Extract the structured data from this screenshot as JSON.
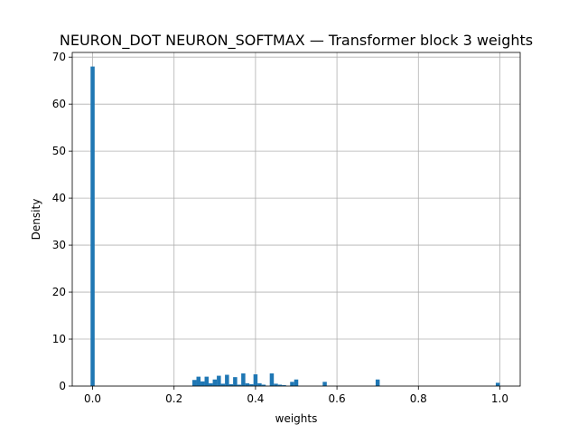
{
  "chart_data": {
    "type": "bar",
    "title": "NEURON_DOT NEURON_SOFTMAX — Transformer block 3 weights",
    "xlabel": "weights",
    "ylabel": "Density",
    "xlim": [
      -0.05,
      1.05
    ],
    "ylim": [
      0,
      71
    ],
    "xticks": [
      "0.0",
      "0.2",
      "0.4",
      "0.6",
      "0.8",
      "1.0"
    ],
    "yticks": [
      "0",
      "10",
      "20",
      "30",
      "40",
      "50",
      "60",
      "70"
    ],
    "grid": true,
    "bar_color": "#1f77b4",
    "bin_width": 0.01,
    "bins": [
      {
        "x": 0.0,
        "density": 68.0
      },
      {
        "x": 0.25,
        "density": 1.3
      },
      {
        "x": 0.26,
        "density": 2.0
      },
      {
        "x": 0.27,
        "density": 1.0
      },
      {
        "x": 0.28,
        "density": 2.0
      },
      {
        "x": 0.29,
        "density": 0.6
      },
      {
        "x": 0.3,
        "density": 1.4
      },
      {
        "x": 0.31,
        "density": 2.2
      },
      {
        "x": 0.32,
        "density": 0.5
      },
      {
        "x": 0.33,
        "density": 2.4
      },
      {
        "x": 0.34,
        "density": 0.4
      },
      {
        "x": 0.35,
        "density": 1.9
      },
      {
        "x": 0.36,
        "density": 0.3
      },
      {
        "x": 0.37,
        "density": 2.7
      },
      {
        "x": 0.38,
        "density": 0.6
      },
      {
        "x": 0.39,
        "density": 0.4
      },
      {
        "x": 0.4,
        "density": 2.5
      },
      {
        "x": 0.41,
        "density": 0.6
      },
      {
        "x": 0.42,
        "density": 0.3
      },
      {
        "x": 0.44,
        "density": 2.7
      },
      {
        "x": 0.45,
        "density": 0.5
      },
      {
        "x": 0.46,
        "density": 0.3
      },
      {
        "x": 0.47,
        "density": 0.2
      },
      {
        "x": 0.49,
        "density": 0.9
      },
      {
        "x": 0.5,
        "density": 1.4
      },
      {
        "x": 0.57,
        "density": 0.9
      },
      {
        "x": 0.7,
        "density": 1.4
      },
      {
        "x": 0.995,
        "density": 0.7
      }
    ]
  }
}
